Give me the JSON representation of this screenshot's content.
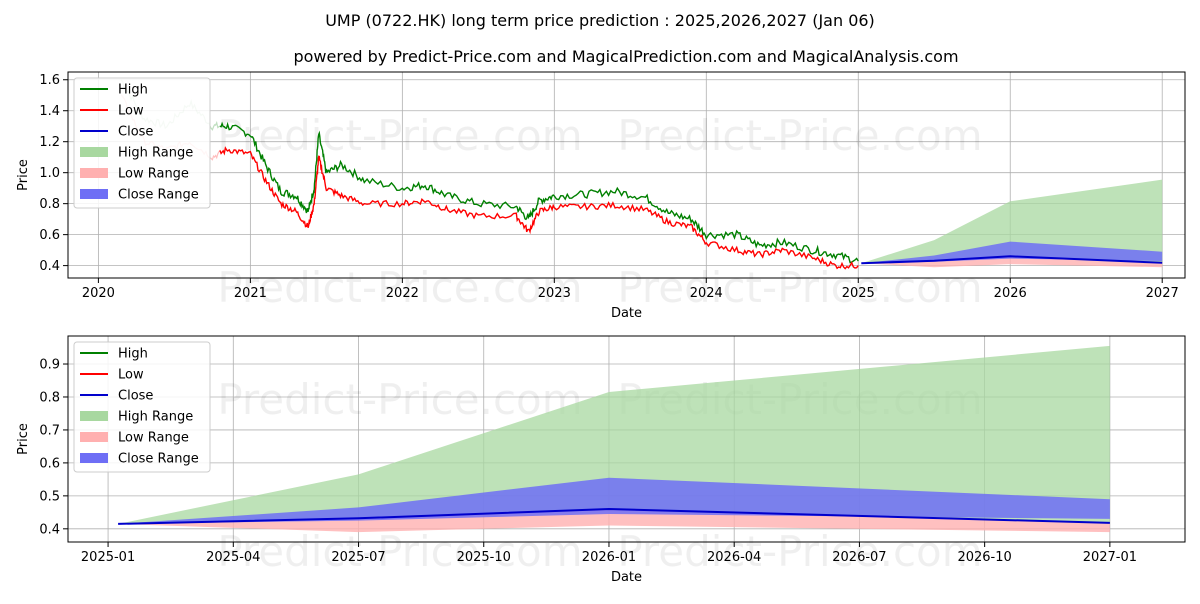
{
  "title": "UMP (0722.HK) long term price prediction : 2025,2026,2027 (Jan 06)",
  "subtitle": "powered by Predict-Price.com and MagicalPrediction.com and MagicalAnalysis.com",
  "watermark": "Predict-Price.com",
  "colors": {
    "high": "#008000",
    "low": "#ff0000",
    "close": "#0000cc",
    "high_range": "#a8d8a0",
    "low_range": "#ffb0b0",
    "close_range": "#6e6ef5",
    "grid": "#b0b0b0"
  },
  "chart_data": [
    {
      "type": "line",
      "id": "overview",
      "xlabel": "Date",
      "ylabel": "Price",
      "xlim": [
        2019.8,
        2027.15
      ],
      "ylim": [
        0.32,
        1.65
      ],
      "x_ticks": [
        2020,
        2021,
        2022,
        2023,
        2024,
        2025,
        2026,
        2027
      ],
      "x_tick_labels": [
        "2020",
        "2021",
        "2022",
        "2023",
        "2024",
        "2025",
        "2026",
        "2027"
      ],
      "y_ticks": [
        0.4,
        0.6,
        0.8,
        1.0,
        1.2,
        1.4,
        1.6
      ],
      "y_tick_labels": [
        "0.4",
        "0.6",
        "0.8",
        "1.0",
        "1.2",
        "1.4",
        "1.6"
      ],
      "grid": true,
      "legend": {
        "position": "top-left",
        "entries": [
          {
            "label": "High",
            "kind": "line",
            "color_key": "high"
          },
          {
            "label": "Low",
            "kind": "line",
            "color_key": "low"
          },
          {
            "label": "Close",
            "kind": "line",
            "color_key": "close"
          },
          {
            "label": "High Range",
            "kind": "patch",
            "color_key": "high_range"
          },
          {
            "label": "Low Range",
            "kind": "patch",
            "color_key": "low_range"
          },
          {
            "label": "Close Range",
            "kind": "patch",
            "color_key": "close_range"
          }
        ]
      },
      "historical": {
        "x": [
          2020.15,
          2020.3,
          2020.45,
          2020.6,
          2020.75,
          2020.85,
          2021.0,
          2021.1,
          2021.2,
          2021.3,
          2021.38,
          2021.42,
          2021.45,
          2021.5,
          2021.6,
          2021.75,
          2022.0,
          2022.15,
          2022.3,
          2022.5,
          2022.75,
          2022.83,
          2022.9,
          2023.0,
          2023.2,
          2023.4,
          2023.6,
          2023.75,
          2023.9,
          2024.0,
          2024.2,
          2024.35,
          2024.5,
          2024.7,
          2024.85,
          2025.0
        ],
        "high": [
          1.6,
          1.35,
          1.3,
          1.45,
          1.3,
          1.3,
          1.25,
          1.05,
          0.88,
          0.85,
          0.75,
          0.9,
          1.25,
          1.0,
          1.05,
          0.95,
          0.9,
          0.92,
          0.85,
          0.8,
          0.78,
          0.7,
          0.82,
          0.85,
          0.86,
          0.88,
          0.84,
          0.74,
          0.7,
          0.6,
          0.6,
          0.53,
          0.55,
          0.5,
          0.47,
          0.43
        ],
        "low": [
          1.5,
          1.2,
          1.15,
          1.2,
          1.1,
          1.15,
          1.12,
          0.95,
          0.8,
          0.75,
          0.65,
          0.8,
          1.1,
          0.9,
          0.85,
          0.8,
          0.8,
          0.82,
          0.76,
          0.72,
          0.72,
          0.62,
          0.75,
          0.78,
          0.78,
          0.79,
          0.76,
          0.68,
          0.65,
          0.55,
          0.5,
          0.47,
          0.5,
          0.45,
          0.4,
          0.4
        ],
        "faded_until": 2020.82
      },
      "forecast": {
        "x": [
          2025.02,
          2025.5,
          2026.0,
          2027.0
        ],
        "close": [
          0.415,
          0.432,
          0.46,
          0.418
        ],
        "high_range_upper": [
          0.415,
          0.565,
          0.815,
          0.955
        ],
        "close_range_upper": [
          0.415,
          0.465,
          0.555,
          0.49
        ],
        "close_range_lower": [
          0.415,
          0.425,
          0.445,
          0.43
        ],
        "low_range_lower": [
          0.415,
          0.39,
          0.41,
          0.39
        ]
      }
    },
    {
      "type": "area",
      "id": "forecast-detail",
      "xlabel": "Date",
      "ylabel": "Price",
      "xlim": [
        2024.92,
        2027.15
      ],
      "ylim": [
        0.36,
        0.985
      ],
      "x_ticks": [
        2025.0,
        2025.25,
        2025.5,
        2025.75,
        2026.0,
        2026.25,
        2026.5,
        2026.75,
        2027.0
      ],
      "x_tick_labels": [
        "2025-01",
        "2025-04",
        "2025-07",
        "2025-10",
        "2026-01",
        "2026-04",
        "2026-07",
        "2026-10",
        "2027-01"
      ],
      "y_ticks": [
        0.4,
        0.5,
        0.6,
        0.7,
        0.8,
        0.9
      ],
      "y_tick_labels": [
        "0.4",
        "0.5",
        "0.6",
        "0.7",
        "0.8",
        "0.9"
      ],
      "grid": true,
      "legend": {
        "position": "top-left",
        "entries": [
          {
            "label": "High",
            "kind": "line",
            "color_key": "high"
          },
          {
            "label": "Low",
            "kind": "line",
            "color_key": "low"
          },
          {
            "label": "Close",
            "kind": "line",
            "color_key": "close"
          },
          {
            "label": "High Range",
            "kind": "patch",
            "color_key": "high_range"
          },
          {
            "label": "Low Range",
            "kind": "patch",
            "color_key": "low_range"
          },
          {
            "label": "Close Range",
            "kind": "patch",
            "color_key": "close_range"
          }
        ]
      },
      "forecast": {
        "x": [
          2025.02,
          2025.5,
          2026.0,
          2027.0
        ],
        "close": [
          0.415,
          0.432,
          0.46,
          0.418
        ],
        "high_range_upper": [
          0.415,
          0.565,
          0.815,
          0.955
        ],
        "close_range_upper": [
          0.415,
          0.465,
          0.555,
          0.49
        ],
        "close_range_lower": [
          0.415,
          0.425,
          0.445,
          0.43
        ],
        "low_range_lower": [
          0.415,
          0.39,
          0.41,
          0.39
        ]
      }
    }
  ]
}
